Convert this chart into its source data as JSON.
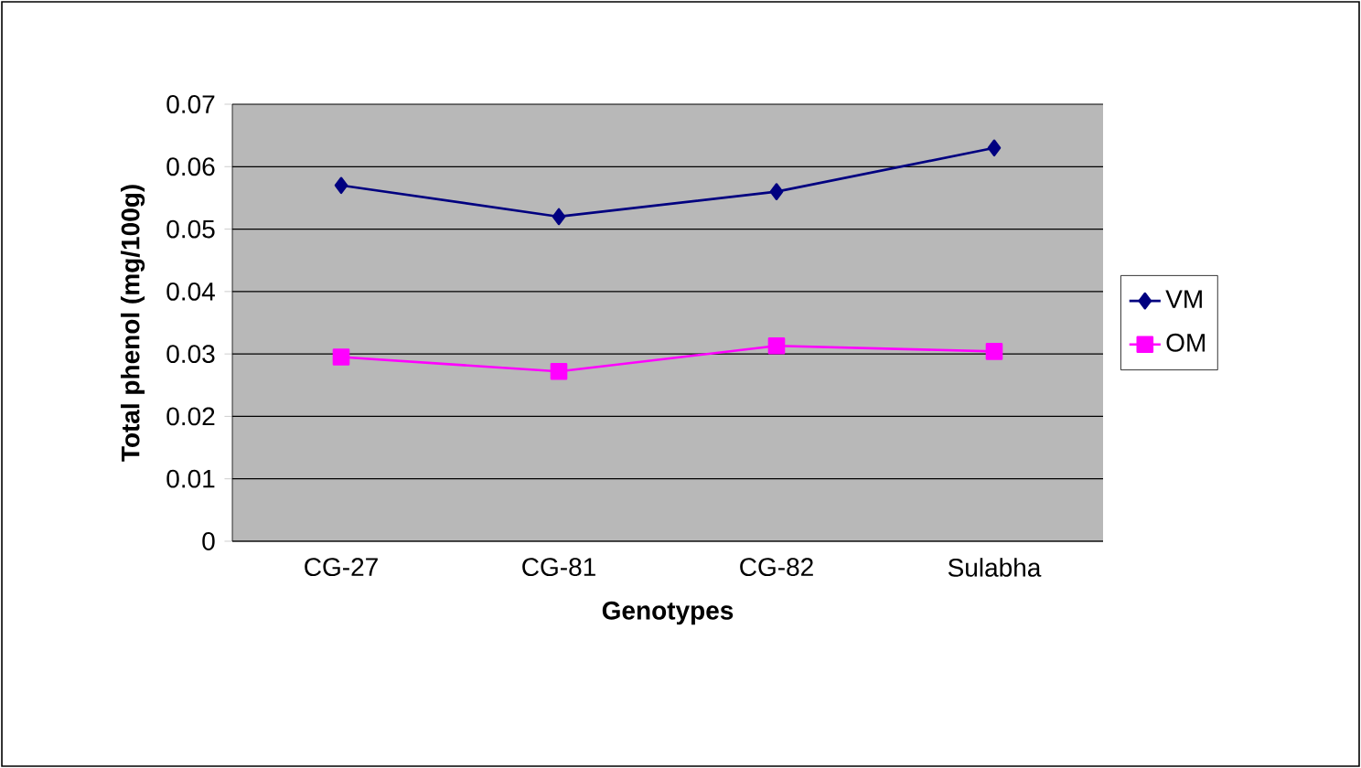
{
  "chart_data": {
    "type": "line",
    "xlabel": "Genotypes",
    "ylabel": "Total phenol (mg/100g)",
    "categories": [
      "CG-27",
      "CG-81",
      "CG-82",
      "Sulabha"
    ],
    "series": [
      {
        "name": "VM",
        "color": "#000080",
        "marker": "diamond",
        "values": [
          0.057,
          0.052,
          0.056,
          0.063
        ]
      },
      {
        "name": "OM",
        "color": "#ff00ff",
        "marker": "square",
        "values": [
          0.0295,
          0.0272,
          0.0313,
          0.0304
        ]
      }
    ],
    "ylim": [
      0,
      0.07
    ],
    "yticks": [
      0,
      0.01,
      0.02,
      0.03,
      0.04,
      0.05,
      0.06,
      0.07
    ],
    "grid": "y",
    "legend": "right",
    "line_style": "solid"
  }
}
